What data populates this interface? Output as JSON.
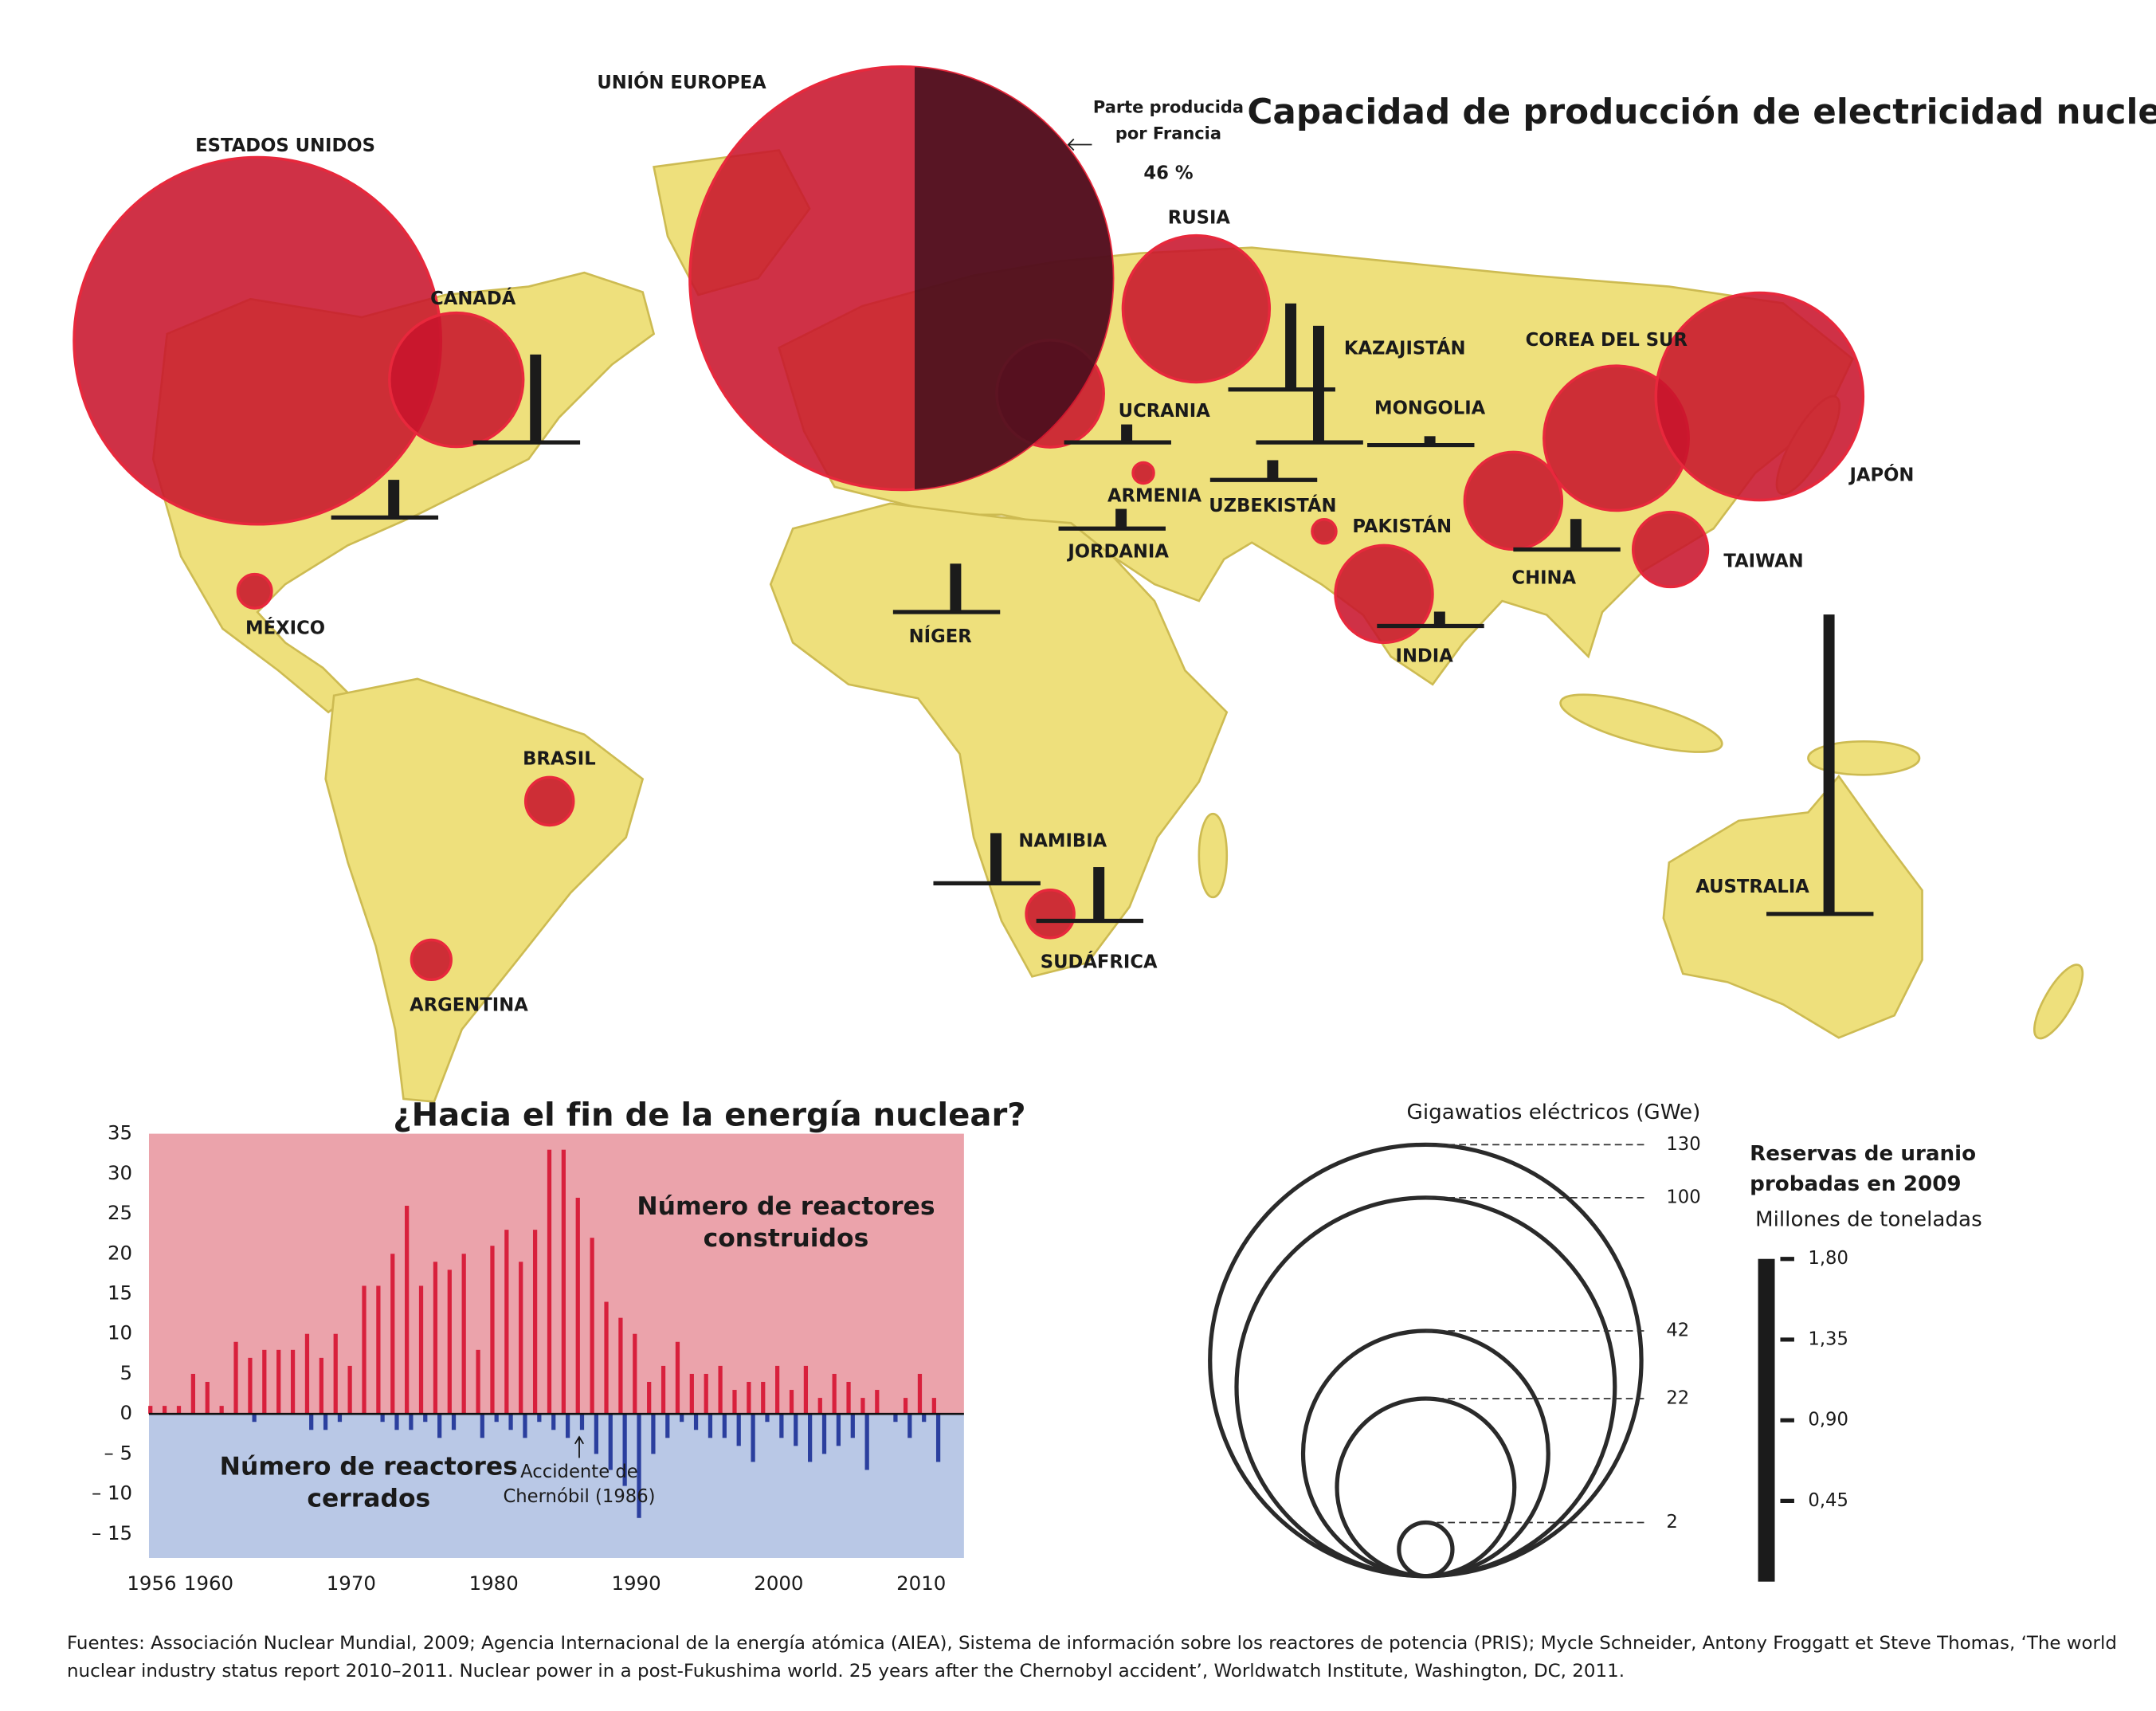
{
  "chart_data": [
    {
      "type": "bubble_map",
      "title": "Capacidad de producción de electricidad nuclear",
      "categories": [
        "ESTADOS UNIDOS",
        "CANADÁ",
        "MÉXICO",
        "BRASIL",
        "ARGENTINA",
        "UNIÓN EUROPEA",
        "RUSIA",
        "UCRANIA",
        "ARMENIA",
        "JORDANIA",
        "NÍGER",
        "NAMIBIA",
        "SUDÁFRICA",
        "KAZAJISTÁN",
        "UZBEKISTÁN",
        "MONGOLIA",
        "PAKISTÁN",
        "INDIA",
        "CHINA",
        "COREA DEL SUR",
        "JAPÓN",
        "TAIWAN",
        "AUSTRALIA"
      ],
      "series": [
        {
          "name": "Gigawatios eléctricos (GWe)",
          "color": "#c8142c",
          "values": [
            94,
            12.5,
            0.8,
            1.6,
            1.1,
            125,
            15,
            8,
            0.3,
            null,
            null,
            null,
            1.6,
            null,
            null,
            null,
            0.4,
            6.6,
            6.6,
            14.6,
            30,
            3.9,
            null
          ]
        },
        {
          "name": "Reservas de uranio probadas en 2009",
          "color": "#1b1b1b",
          "values": [
            0.21,
            0.49,
            null,
            null,
            null,
            null,
            0.48,
            0.1,
            null,
            0.11,
            0.27,
            0.28,
            0.3,
            0.65,
            0.11,
            0.05,
            null,
            0.08,
            0.17,
            null,
            null,
            null,
            1.67
          ]
        }
      ],
      "size_legend": {
        "values": [
          130,
          100,
          42,
          22,
          2
        ]
      },
      "bar_legend": {
        "unit": "Millones de toneladas",
        "ylim": [
          0,
          1.8
        ],
        "yticks": [
          {
            "value": 0.45,
            "label": "0,45"
          },
          {
            "value": 0.9,
            "label": "0,90"
          },
          {
            "value": 1.35,
            "label": "1,35"
          },
          {
            "value": 1.8,
            "label": "1,80"
          }
        ]
      },
      "france_share": {
        "label": "Parte producida por Francia",
        "value": 46,
        "value_label": "46 %"
      }
    },
    {
      "type": "bar",
      "title": "¿Hacia el fin de la energía nuclear?",
      "x": [
        1956,
        1957,
        1958,
        1959,
        1960,
        1961,
        1962,
        1963,
        1964,
        1965,
        1966,
        1967,
        1968,
        1969,
        1970,
        1971,
        1972,
        1973,
        1974,
        1975,
        1976,
        1977,
        1978,
        1979,
        1980,
        1981,
        1982,
        1983,
        1984,
        1985,
        1986,
        1987,
        1988,
        1989,
        1990,
        1991,
        1992,
        1993,
        1994,
        1995,
        1996,
        1997,
        1998,
        1999,
        2000,
        2001,
        2002,
        2003,
        2004,
        2005,
        2006,
        2007,
        2008,
        2009,
        2010,
        2011
      ],
      "series": [
        {
          "name": "Número de reactores construidos",
          "color": "#d8203c",
          "values": [
            1,
            1,
            1,
            5,
            4,
            1,
            9,
            7,
            8,
            8,
            8,
            10,
            7,
            10,
            6,
            16,
            16,
            20,
            26,
            16,
            19,
            18,
            20,
            8,
            21,
            23,
            19,
            23,
            33,
            33,
            27,
            22,
            14,
            12,
            10,
            4,
            6,
            9,
            5,
            5,
            6,
            3,
            4,
            4,
            6,
            3,
            6,
            2,
            5,
            4,
            2,
            3,
            0,
            2,
            5,
            2
          ]
        },
        {
          "name": "Número de reactores cerrados",
          "color": "#2b3f9e",
          "values": [
            0,
            0,
            0,
            0,
            0,
            0,
            0,
            -1,
            0,
            0,
            0,
            -2,
            -2,
            -1,
            0,
            0,
            -1,
            -2,
            -2,
            -1,
            -3,
            -2,
            0,
            -3,
            -1,
            -2,
            -3,
            -1,
            -2,
            -3,
            -2,
            -5,
            -7,
            -9,
            -13,
            -5,
            -3,
            -1,
            -2,
            -3,
            -3,
            -4,
            -6,
            -1,
            -3,
            -4,
            -6,
            -5,
            -4,
            -3,
            -7,
            0,
            -1,
            -3,
            -1,
            -6
          ]
        }
      ],
      "xlim": [
        1956,
        2013
      ],
      "xticks": [
        1956,
        1960,
        1970,
        1980,
        1990,
        2000,
        2010
      ],
      "ylim": [
        -18,
        35
      ],
      "yticks": [
        35,
        30,
        25,
        20,
        15,
        10,
        5,
        0,
        {
          "value": -5,
          "label": "– 5"
        },
        {
          "value": -10,
          "label": "– 10"
        },
        {
          "value": -15,
          "label": "– 15"
        }
      ],
      "annotation": {
        "text": "Accidente de Chernóbil (1986)",
        "x": 1986
      }
    }
  ],
  "source": [
    "Fuentes: Associación Nuclear Mundial, 2009; Agencia Internacional de la energía atómica (AIEA), Sistema de información sobre los reactores de potencia (PRIS); Mycle Schneider, Antony Froggatt et Steve Thomas, ‘The world",
    "nuclear industry status report 2010–2011. Nuclear power in a post-Fukushima world. 25 years after the Chernobyl accident’, Worldwatch Institute, Washington, DC, 2011."
  ]
}
